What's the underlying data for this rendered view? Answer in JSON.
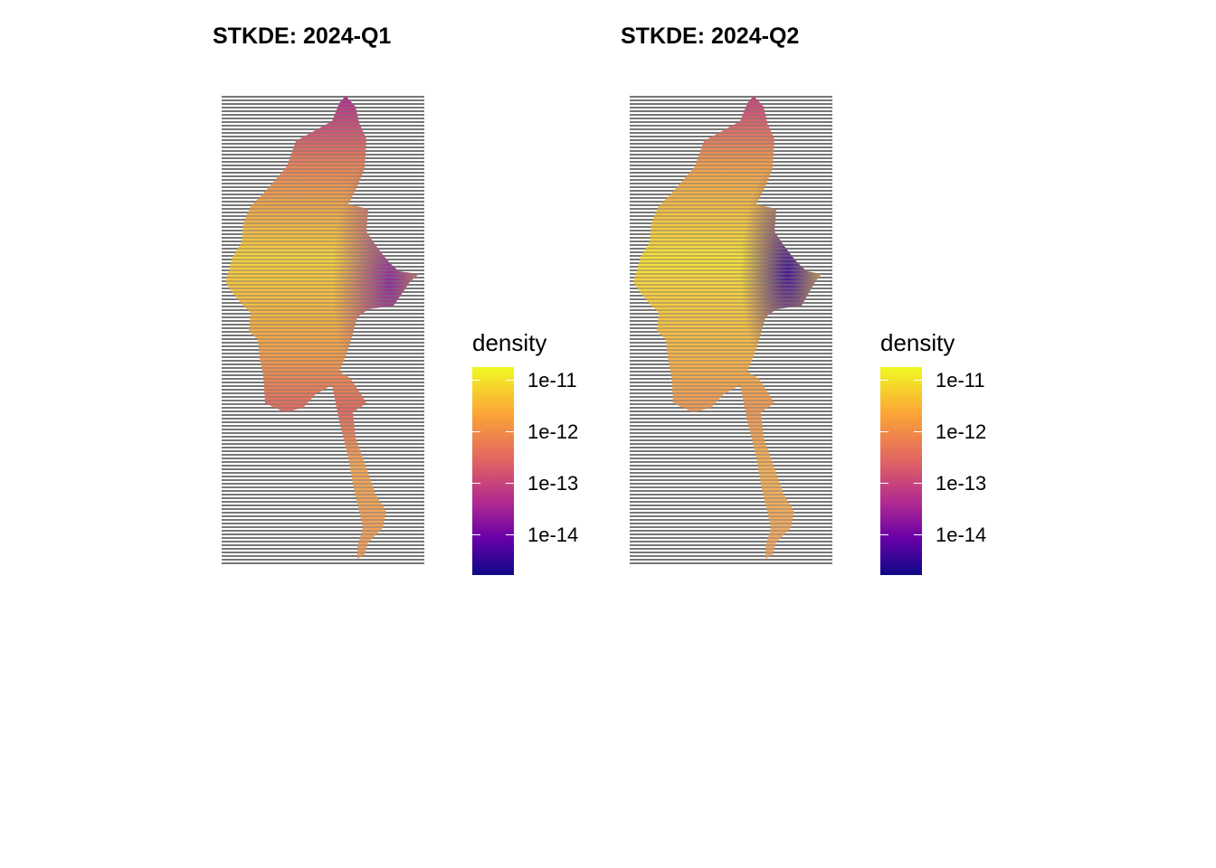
{
  "colors": {
    "viridis_plasma": [
      "#0d0887",
      "#6a00a8",
      "#b12a90",
      "#e16462",
      "#fca636",
      "#f0f921"
    ],
    "stripe": "#777777"
  },
  "panels": [
    {
      "title": "STKDE: 2024-Q1",
      "legend": {
        "title": "density",
        "labels": [
          "1e-11",
          "1e-12",
          "1e-13",
          "1e-14"
        ]
      }
    },
    {
      "title": "STKDE: 2024-Q2",
      "legend": {
        "title": "density",
        "labels": [
          "1e-11",
          "1e-12",
          "1e-13",
          "1e-14"
        ]
      }
    }
  ]
}
